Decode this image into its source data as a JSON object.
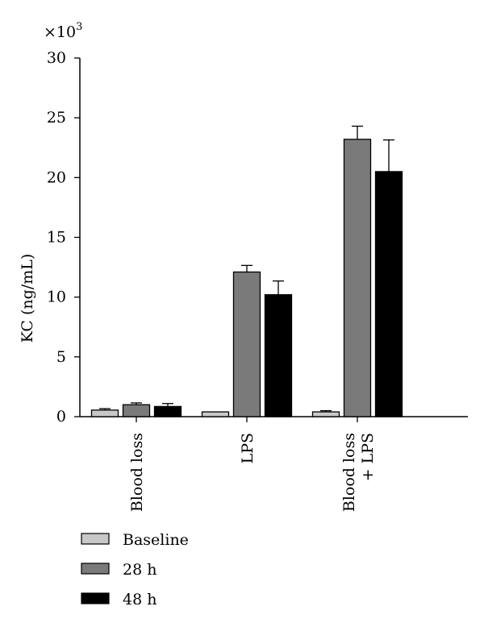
{
  "chart_data": {
    "type": "bar",
    "title": "",
    "xlabel": "",
    "ylabel": "KC (ng/mL)",
    "y_multiplier": "×10",
    "y_multiplier_exp": "3",
    "ylim": [
      0,
      30
    ],
    "yticks": [
      "0",
      "5",
      "10",
      "15",
      "20",
      "25",
      "30"
    ],
    "grid": false,
    "legend_position": "bottom-left",
    "categories": [
      [
        "Blood loss"
      ],
      [
        "LPS"
      ],
      [
        "Blood loss",
        "+ LPS"
      ]
    ],
    "series": [
      {
        "name": "Baseline",
        "color": "#c8c8c8",
        "values": [
          0.55,
          0.4,
          0.4
        ],
        "errors": [
          0.12,
          0.0,
          0.1
        ]
      },
      {
        "name": "28 h",
        "color": "#7a7a7a",
        "values": [
          1.0,
          12.1,
          23.2
        ],
        "errors": [
          0.15,
          0.55,
          1.1
        ]
      },
      {
        "name": "48 h",
        "color": "#000000",
        "values": [
          0.85,
          10.2,
          20.5
        ],
        "errors": [
          0.25,
          1.15,
          2.65
        ]
      }
    ]
  }
}
